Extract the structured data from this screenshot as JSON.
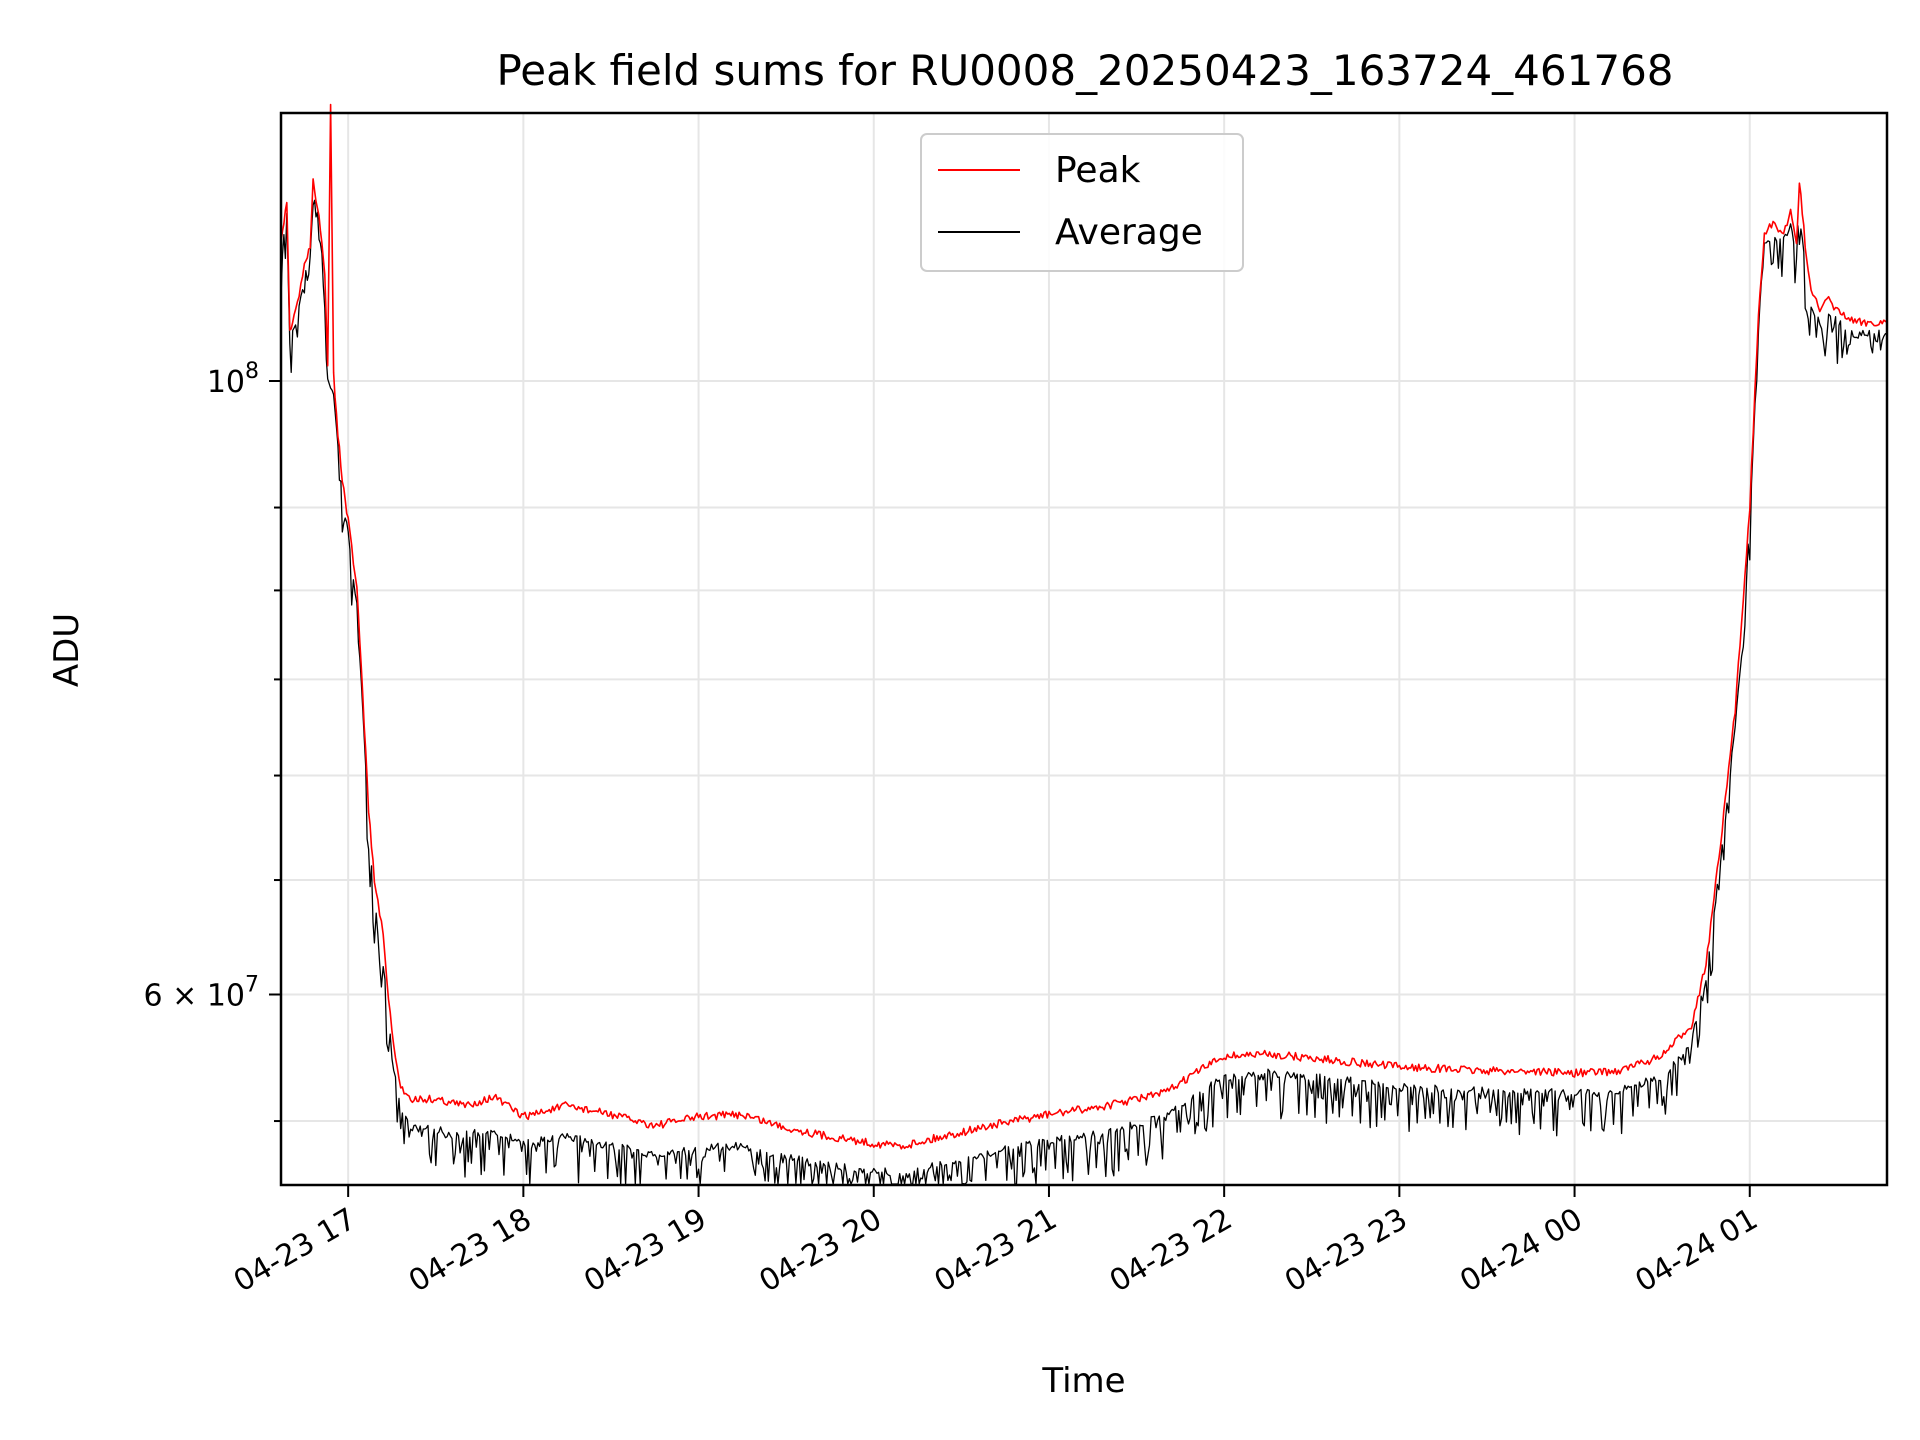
{
  "chart_data": {
    "type": "line",
    "title": "Peak field sums for RU0008_20250423_163724_461768",
    "xlabel": "Time",
    "ylabel": "ADU",
    "y_scale": "log",
    "ylim": [
      51200000,
      125000000
    ],
    "xlim": [
      "2025-04-23 16:37",
      "2025-04-24 01:47"
    ],
    "x_ticks": [
      {
        "t": "2025-04-23 17:00",
        "label": "04-23 17"
      },
      {
        "t": "2025-04-23 18:00",
        "label": "04-23 18"
      },
      {
        "t": "2025-04-23 19:00",
        "label": "04-23 19"
      },
      {
        "t": "2025-04-23 20:00",
        "label": "04-23 20"
      },
      {
        "t": "2025-04-23 21:00",
        "label": "04-23 21"
      },
      {
        "t": "2025-04-23 22:00",
        "label": "04-23 22"
      },
      {
        "t": "2025-04-23 23:00",
        "label": "04-23 23"
      },
      {
        "t": "2025-04-24 00:00",
        "label": "04-24 00"
      },
      {
        "t": "2025-04-24 01:00",
        "label": "04-24 01"
      }
    ],
    "y_major_ticks": [
      {
        "value": 100000000,
        "mantissa": "",
        "base": "10",
        "exp": "8"
      },
      {
        "value": 60000000,
        "mantissa": "6",
        "base": "10",
        "exp": "7"
      }
    ],
    "y_minor_ticks": [
      54000000,
      66000000,
      72000000,
      78000000,
      84000000,
      90000000
    ],
    "grid": true,
    "legend_position": "top-center",
    "series": [
      {
        "name": "Peak",
        "color": "#ff0000",
        "points": [
          [
            "2025-04-23 16:37",
            112000000
          ],
          [
            "2025-04-23 16:39",
            116000000
          ],
          [
            "2025-04-23 16:40",
            104000000
          ],
          [
            "2025-04-23 16:42",
            106000000
          ],
          [
            "2025-04-23 16:45",
            110000000
          ],
          [
            "2025-04-23 16:47",
            112000000
          ],
          [
            "2025-04-23 16:48",
            118000000
          ],
          [
            "2025-04-23 16:50",
            115000000
          ],
          [
            "2025-04-23 16:52",
            109000000
          ],
          [
            "2025-04-23 16:53",
            101000000
          ],
          [
            "2025-04-23 16:54",
            126000000
          ],
          [
            "2025-04-23 16:55",
            101000000
          ],
          [
            "2025-04-23 16:56",
            97000000
          ],
          [
            "2025-04-23 16:58",
            92000000
          ],
          [
            "2025-04-23 17:00",
            89000000
          ],
          [
            "2025-04-23 17:03",
            84000000
          ],
          [
            "2025-04-23 17:05",
            77000000
          ],
          [
            "2025-04-23 17:07",
            70000000
          ],
          [
            "2025-04-23 17:09",
            66000000
          ],
          [
            "2025-04-23 17:12",
            63000000
          ],
          [
            "2025-04-23 17:15",
            58000000
          ],
          [
            "2025-04-23 17:18",
            55500000
          ],
          [
            "2025-04-23 17:22",
            55000000
          ],
          [
            "2025-04-23 17:30",
            55000000
          ],
          [
            "2025-04-23 17:40",
            54700000
          ],
          [
            "2025-04-23 17:50",
            55100000
          ],
          [
            "2025-04-23 18:00",
            54200000
          ],
          [
            "2025-04-23 18:15",
            54700000
          ],
          [
            "2025-04-23 18:30",
            54300000
          ],
          [
            "2025-04-23 18:45",
            53800000
          ],
          [
            "2025-04-23 19:00",
            54200000
          ],
          [
            "2025-04-23 19:15",
            54300000
          ],
          [
            "2025-04-23 19:30",
            53700000
          ],
          [
            "2025-04-23 19:45",
            53300000
          ],
          [
            "2025-04-23 20:00",
            53000000
          ],
          [
            "2025-04-23 20:10",
            52900000
          ],
          [
            "2025-04-23 20:20",
            53200000
          ],
          [
            "2025-04-23 20:40",
            53800000
          ],
          [
            "2025-04-23 21:00",
            54300000
          ],
          [
            "2025-04-23 21:20",
            54700000
          ],
          [
            "2025-04-23 21:40",
            55300000
          ],
          [
            "2025-04-23 21:50",
            56200000
          ],
          [
            "2025-04-23 22:00",
            57000000
          ],
          [
            "2025-04-23 22:15",
            57100000
          ],
          [
            "2025-04-23 22:30",
            56900000
          ],
          [
            "2025-04-23 22:45",
            56700000
          ],
          [
            "2025-04-23 23:00",
            56500000
          ],
          [
            "2025-04-23 23:15",
            56400000
          ],
          [
            "2025-04-23 23:30",
            56300000
          ],
          [
            "2025-04-23 23:45",
            56300000
          ],
          [
            "2025-04-24 00:00",
            56200000
          ],
          [
            "2025-04-24 00:15",
            56300000
          ],
          [
            "2025-04-24 00:30",
            57000000
          ],
          [
            "2025-04-24 00:40",
            58500000
          ],
          [
            "2025-04-24 00:45",
            61500000
          ],
          [
            "2025-04-24 00:50",
            68000000
          ],
          [
            "2025-04-24 00:55",
            76000000
          ],
          [
            "2025-04-24 01:00",
            90000000
          ],
          [
            "2025-04-24 01:03",
            106000000
          ],
          [
            "2025-04-24 01:05",
            113000000
          ],
          [
            "2025-04-24 01:08",
            114000000
          ],
          [
            "2025-04-24 01:11",
            113000000
          ],
          [
            "2025-04-24 01:14",
            115000000
          ],
          [
            "2025-04-24 01:16",
            112000000
          ],
          [
            "2025-04-24 01:17",
            118000000
          ],
          [
            "2025-04-24 01:19",
            112000000
          ],
          [
            "2025-04-24 01:21",
            108000000
          ],
          [
            "2025-04-24 01:24",
            106000000
          ],
          [
            "2025-04-24 01:27",
            107000000
          ],
          [
            "2025-04-24 01:30",
            106000000
          ],
          [
            "2025-04-24 01:36",
            105000000
          ],
          [
            "2025-04-24 01:47",
            105000000
          ]
        ]
      },
      {
        "name": "Average",
        "color": "#000000",
        "points": [
          [
            "2025-04-23 16:37",
            111000000
          ],
          [
            "2025-04-23 16:39",
            115000000
          ],
          [
            "2025-04-23 16:40",
            103000000
          ],
          [
            "2025-04-23 16:42",
            105000000
          ],
          [
            "2025-04-23 16:45",
            109000000
          ],
          [
            "2025-04-23 16:47",
            111000000
          ],
          [
            "2025-04-23 16:48",
            117000000
          ],
          [
            "2025-04-23 16:50",
            114000000
          ],
          [
            "2025-04-23 16:52",
            108000000
          ],
          [
            "2025-04-23 16:53",
            100000000
          ],
          [
            "2025-04-23 16:55",
            99000000
          ],
          [
            "2025-04-23 16:56",
            96000000
          ],
          [
            "2025-04-23 16:58",
            91000000
          ],
          [
            "2025-04-23 17:00",
            88000000
          ],
          [
            "2025-04-23 17:03",
            83000000
          ],
          [
            "2025-04-23 17:05",
            76000000
          ],
          [
            "2025-04-23 17:07",
            69000000
          ],
          [
            "2025-04-23 17:09",
            65000000
          ],
          [
            "2025-04-23 17:12",
            61500000
          ],
          [
            "2025-04-23 17:15",
            57000000
          ],
          [
            "2025-04-23 17:18",
            54500000
          ],
          [
            "2025-04-23 17:22",
            53700000
          ],
          [
            "2025-04-23 17:30",
            53600000
          ],
          [
            "2025-04-23 17:40",
            53400000
          ],
          [
            "2025-04-23 17:50",
            53600000
          ],
          [
            "2025-04-23 18:00",
            53000000
          ],
          [
            "2025-04-23 18:15",
            53300000
          ],
          [
            "2025-04-23 18:30",
            52900000
          ],
          [
            "2025-04-23 18:45",
            52500000
          ],
          [
            "2025-04-23 19:00",
            52800000
          ],
          [
            "2025-04-23 19:15",
            52900000
          ],
          [
            "2025-04-23 19:30",
            52400000
          ],
          [
            "2025-04-23 19:45",
            52000000
          ],
          [
            "2025-04-23 20:00",
            51800000
          ],
          [
            "2025-04-23 20:10",
            51700000
          ],
          [
            "2025-04-23 20:20",
            52000000
          ],
          [
            "2025-04-23 20:40",
            52600000
          ],
          [
            "2025-04-23 21:00",
            53100000
          ],
          [
            "2025-04-23 21:20",
            53500000
          ],
          [
            "2025-04-23 21:40",
            54200000
          ],
          [
            "2025-04-23 21:50",
            55100000
          ],
          [
            "2025-04-23 22:00",
            56000000
          ],
          [
            "2025-04-23 22:15",
            56200000
          ],
          [
            "2025-04-23 22:30",
            56000000
          ],
          [
            "2025-04-23 22:45",
            55800000
          ],
          [
            "2025-04-23 23:00",
            55600000
          ],
          [
            "2025-04-23 23:15",
            55500000
          ],
          [
            "2025-04-23 23:30",
            55400000
          ],
          [
            "2025-04-23 23:45",
            55400000
          ],
          [
            "2025-04-24 00:00",
            55300000
          ],
          [
            "2025-04-24 00:15",
            55400000
          ],
          [
            "2025-04-24 00:30",
            56000000
          ],
          [
            "2025-04-24 00:40",
            57700000
          ],
          [
            "2025-04-24 00:45",
            60800000
          ],
          [
            "2025-04-24 00:50",
            67000000
          ],
          [
            "2025-04-24 00:55",
            75000000
          ],
          [
            "2025-04-24 01:00",
            89000000
          ],
          [
            "2025-04-24 01:03",
            105000000
          ],
          [
            "2025-04-24 01:05",
            112000000
          ],
          [
            "2025-04-24 01:08",
            113000000
          ],
          [
            "2025-04-24 01:11",
            112000000
          ],
          [
            "2025-04-24 01:14",
            114000000
          ],
          [
            "2025-04-24 01:16",
            111000000
          ],
          [
            "2025-04-24 01:17",
            116000000
          ],
          [
            "2025-04-24 01:19",
            110000000
          ],
          [
            "2025-04-24 01:21",
            106000000
          ],
          [
            "2025-04-24 01:24",
            105000000
          ],
          [
            "2025-04-24 01:27",
            106000000
          ],
          [
            "2025-04-24 01:30",
            105000000
          ],
          [
            "2025-04-24 01:36",
            104000000
          ],
          [
            "2025-04-24 01:47",
            104000000
          ]
        ]
      }
    ]
  }
}
